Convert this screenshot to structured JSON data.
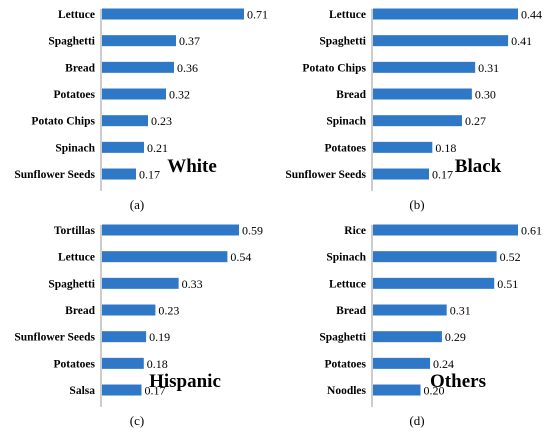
{
  "chart_data": [
    {
      "type": "bar",
      "orientation": "horizontal",
      "group_label": "White",
      "panel_label": "(a)",
      "categories": [
        "Lettuce",
        "Spaghetti",
        "Bread",
        "Potatoes",
        "Potato Chips",
        "Spinach",
        "Sunflower Seeds"
      ],
      "values": [
        0.71,
        0.37,
        0.36,
        0.32,
        0.23,
        0.21,
        0.17
      ],
      "value_labels": [
        "0.71",
        "0.37",
        "0.36",
        "0.32",
        "0.23",
        "0.21",
        "0.17"
      ],
      "xlim": [
        0,
        0.71
      ]
    },
    {
      "type": "bar",
      "orientation": "horizontal",
      "group_label": "Black",
      "panel_label": "(b)",
      "categories": [
        "Lettuce",
        "Spaghetti",
        "Potato Chips",
        "Bread",
        "Spinach",
        "Potatoes",
        "Sunflower Seeds"
      ],
      "values": [
        0.44,
        0.41,
        0.31,
        0.3,
        0.27,
        0.18,
        0.17
      ],
      "value_labels": [
        "0.44",
        "0.41",
        "0.31",
        "0.30",
        "0.27",
        "0.18",
        "0.17"
      ],
      "xlim": [
        0,
        0.44
      ]
    },
    {
      "type": "bar",
      "orientation": "horizontal",
      "group_label": "Hispanic",
      "panel_label": "(c)",
      "categories": [
        "Tortillas",
        "Lettuce",
        "Spaghetti",
        "Bread",
        "Sunflower Seeds",
        "Potatoes",
        "Salsa"
      ],
      "values": [
        0.59,
        0.54,
        0.33,
        0.23,
        0.19,
        0.18,
        0.17
      ],
      "value_labels": [
        "0.59",
        "0.54",
        "0.33",
        "0.23",
        "0.19",
        "0.18",
        "0.17"
      ],
      "xlim": [
        0,
        0.59
      ]
    },
    {
      "type": "bar",
      "orientation": "horizontal",
      "group_label": "Others",
      "panel_label": "(d)",
      "categories": [
        "Rice",
        "Spinach",
        "Lettuce",
        "Bread",
        "Spaghetti",
        "Potatoes",
        "Noodles"
      ],
      "values": [
        0.61,
        0.52,
        0.51,
        0.31,
        0.29,
        0.24,
        0.2
      ],
      "value_labels": [
        "0.61",
        "0.52",
        "0.51",
        "0.31",
        "0.29",
        "0.24",
        "0.20"
      ],
      "xlim": [
        0,
        0.61
      ]
    }
  ],
  "colors": {
    "bar": "#2f78c8",
    "axis": "#999999",
    "text": "#000000"
  }
}
